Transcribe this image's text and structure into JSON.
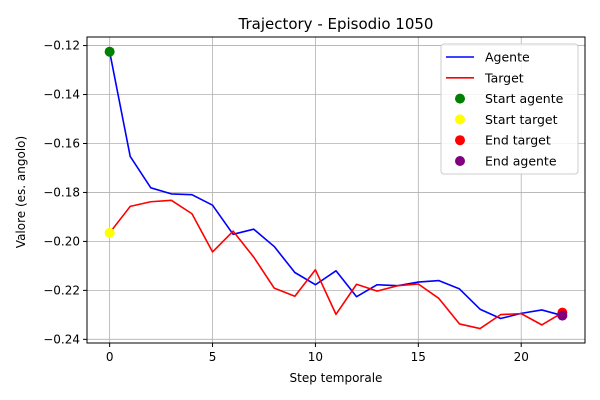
{
  "chart_data": {
    "type": "line",
    "title": "Trajectory - Episodio 1050",
    "xlabel": "Step temporale",
    "ylabel": "Valore (es. angolo)",
    "xlim": [
      -1.1,
      23.1
    ],
    "ylim": [
      -0.2415,
      -0.1165
    ],
    "xticks": [
      0,
      5,
      10,
      15,
      20
    ],
    "yticks": [
      -0.24,
      -0.22,
      -0.2,
      -0.18,
      -0.16,
      -0.14,
      -0.12
    ],
    "ytick_labels": [
      "−0.24",
      "−0.22",
      "−0.20",
      "−0.18",
      "−0.16",
      "−0.14",
      "−0.12"
    ],
    "grid": true,
    "legend_position": "top-right",
    "x": [
      0,
      1,
      2,
      3,
      4,
      5,
      6,
      7,
      8,
      9,
      10,
      11,
      12,
      13,
      14,
      15,
      16,
      17,
      18,
      19,
      20,
      21,
      22
    ],
    "series": [
      {
        "name": "Agente",
        "color": "#0000ff",
        "values": [
          -0.1225,
          -0.1653,
          -0.1781,
          -0.1806,
          -0.1809,
          -0.1852,
          -0.1971,
          -0.195,
          -0.2021,
          -0.2127,
          -0.2177,
          -0.212,
          -0.2226,
          -0.2177,
          -0.2181,
          -0.2166,
          -0.216,
          -0.2194,
          -0.2277,
          -0.2315,
          -0.2294,
          -0.228,
          -0.2303
        ]
      },
      {
        "name": "Target",
        "color": "#ff0000",
        "values": [
          -0.1965,
          -0.1857,
          -0.1838,
          -0.1832,
          -0.1887,
          -0.2043,
          -0.1958,
          -0.2064,
          -0.2191,
          -0.2224,
          -0.2116,
          -0.2298,
          -0.2175,
          -0.2203,
          -0.2181,
          -0.2174,
          -0.2233,
          -0.2337,
          -0.2356,
          -0.2299,
          -0.2295,
          -0.2341,
          -0.2291
        ]
      }
    ],
    "markers": [
      {
        "name": "Start agente",
        "color": "#008000",
        "x": 0,
        "y": -0.1225
      },
      {
        "name": "Start target",
        "color": "#ffff00",
        "x": 0,
        "y": -0.1965
      },
      {
        "name": "End target",
        "color": "#ff0000",
        "x": 22,
        "y": -0.2291
      },
      {
        "name": "End agente",
        "color": "#800080",
        "x": 22,
        "y": -0.2303
      }
    ]
  }
}
